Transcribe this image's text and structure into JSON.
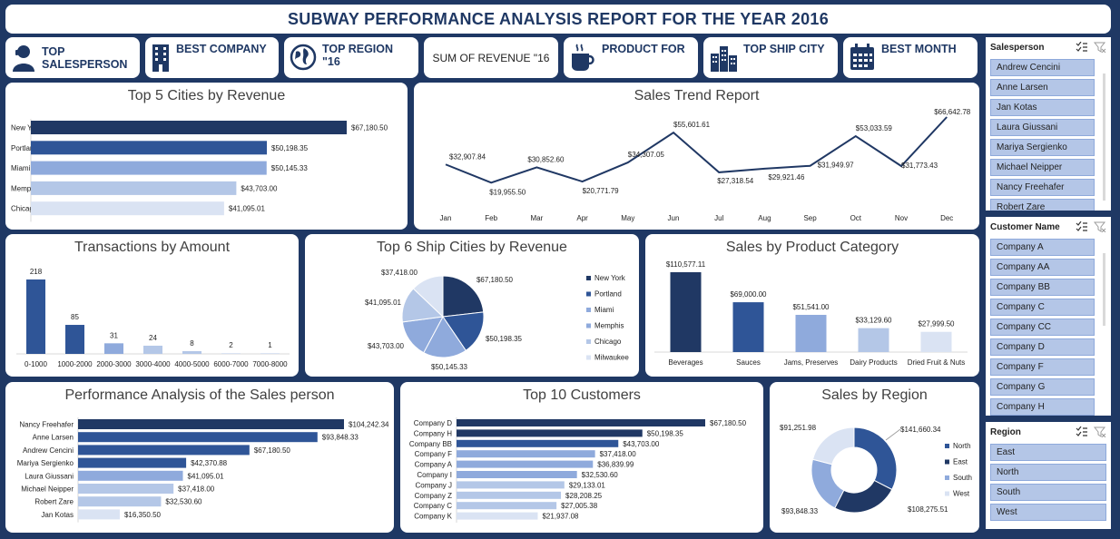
{
  "header": {
    "title": "SUBWAY PERFORMANCE ANALYSIS REPORT FOR THE YEAR 2016"
  },
  "kpis": [
    {
      "label": "TOP SALESPERSON",
      "icon": "person-icon"
    },
    {
      "label": "BEST COMPANY",
      "icon": "building-icon"
    },
    {
      "label": "TOP REGION \"16",
      "icon": "globe-icon"
    },
    {
      "label": "SUM OF REVENUE \"16",
      "icon": ""
    },
    {
      "label": "PRODUCT FOR",
      "icon": "coffee-cup-icon"
    },
    {
      "label": "TOP SHIP CITY",
      "icon": "city-icon"
    },
    {
      "label": "BEST MONTH",
      "icon": "calendar-icon"
    }
  ],
  "colors": {
    "dark": "#203864",
    "mid": "#2f5597",
    "light": "#8faadc",
    "lighter": "#b4c7e7",
    "lightest": "#dae3f3",
    "background": "#1f3864"
  },
  "charts": {
    "cities": {
      "title": "Top 5 Cities by Revenue",
      "chart_data": {
        "type": "bar",
        "orientation": "horizontal",
        "categories": [
          "New York",
          "Portland",
          "Miami",
          "Memphis",
          "Chicago"
        ],
        "values": [
          67180.5,
          50198.35,
          50145.33,
          43703.0,
          41095.01
        ],
        "labels": [
          "$67,180.50",
          "$50,198.35",
          "$50,145.33",
          "$43,703.00",
          "$41,095.01"
        ]
      }
    },
    "trend": {
      "title": "Sales Trend Report",
      "chart_data": {
        "type": "line",
        "x": [
          "Jan",
          "Feb",
          "Mar",
          "Apr",
          "May",
          "Jun",
          "Jul",
          "Aug",
          "Sep",
          "Oct",
          "Nov",
          "Dec"
        ],
        "values": [
          32907.84,
          19955.5,
          30852.6,
          20771.79,
          34307.05,
          55601.61,
          27318.54,
          29921.46,
          31949.97,
          53033.59,
          31773.43,
          66642.78
        ],
        "labels": [
          "$32,907.84",
          "$19,955.50",
          "$30,852.60",
          "$20,771.79",
          "$34,307.05",
          "$55,601.61",
          "$27,318.54",
          "$29,921.46",
          "$31,949.97",
          "$53,033.59",
          "$31,773.43",
          "$66,642.78"
        ]
      }
    },
    "transactions": {
      "title": "Transactions by Amount",
      "chart_data": {
        "type": "bar",
        "categories": [
          "0-1000",
          "1000-2000",
          "2000-3000",
          "3000-4000",
          "4000-5000",
          "6000-7000",
          "7000-8000"
        ],
        "values": [
          218,
          85,
          31,
          24,
          8,
          2,
          1
        ],
        "labels": [
          "218",
          "85",
          "31",
          "24",
          "8",
          "2",
          "1"
        ]
      }
    },
    "ship": {
      "title": "Top 6 Ship Cities by Revenue",
      "chart_data": {
        "type": "pie",
        "categories": [
          "New York",
          "Portland",
          "Miami",
          "Memphis",
          "Chicago",
          "Milwaukee"
        ],
        "values": [
          67180.5,
          50198.35,
          50145.33,
          43703.0,
          41095.01,
          37418.0
        ],
        "labels": [
          "$67,180.50",
          "$50,198.35",
          "$50,145.33",
          "$43,703.00",
          "$41,095.01",
          "$37,418.00"
        ]
      }
    },
    "category": {
      "title": "Sales by Product Category",
      "chart_data": {
        "type": "bar",
        "categories": [
          "Beverages",
          "Sauces",
          "Jams, Preserves",
          "Dairy Products",
          "Dried Fruit & Nuts"
        ],
        "values": [
          110577.11,
          69000.0,
          51541.0,
          33129.6,
          27999.5
        ],
        "labels": [
          "$110,577.11",
          "$69,000.00",
          "$51,541.00",
          "$33,129.60",
          "$27,999.50"
        ]
      }
    },
    "salesperson": {
      "title": "Performance Analysis of the Sales person",
      "chart_data": {
        "type": "bar",
        "orientation": "horizontal",
        "categories": [
          "Nancy Freehafer",
          "Anne Larsen",
          "Andrew Cencini",
          "Mariya Sergienko",
          "Laura Giussani",
          "Michael Neipper",
          "Robert Zare",
          "Jan Kotas"
        ],
        "values": [
          104242.34,
          93848.33,
          67180.5,
          42370.88,
          41095.01,
          37418.0,
          32530.6,
          16350.5
        ],
        "labels": [
          "$104,242.34",
          "$93,848.33",
          "$67,180.50",
          "$42,370.88",
          "$41,095.01",
          "$37,418.00",
          "$32,530.60",
          "$16,350.50"
        ]
      }
    },
    "customers": {
      "title": "Top 10 Customers",
      "chart_data": {
        "type": "bar",
        "orientation": "horizontal",
        "categories": [
          "Company D",
          "Company H",
          "Company BB",
          "Company F",
          "Company A",
          "Company I",
          "Company J",
          "Company Z",
          "Company C",
          "Company K"
        ],
        "values": [
          67180.5,
          50198.35,
          43703.0,
          37418.0,
          36839.99,
          32530.6,
          29133.01,
          28208.25,
          27005.38,
          21937.08
        ],
        "labels": [
          "$67,180.50",
          "$50,198.35",
          "$43,703.00",
          "$37,418.00",
          "$36,839.99",
          "$32,530.60",
          "$29,133.01",
          "$28,208.25",
          "$27,005.38",
          "$21,937.08"
        ]
      }
    },
    "region": {
      "title": "Sales by Region",
      "chart_data": {
        "type": "pie",
        "donut": true,
        "categories": [
          "North",
          "East",
          "South",
          "West"
        ],
        "values": [
          141660.34,
          108275.51,
          93848.33,
          91251.98
        ],
        "labels": [
          "$141,660.34",
          "$108,275.51",
          "$93,848.33",
          "$91,251.98"
        ]
      }
    }
  },
  "slicers": {
    "salesperson": {
      "header": "Salesperson",
      "items": [
        "Andrew Cencini",
        "Anne Larsen",
        "Jan Kotas",
        "Laura Giussani",
        "Mariya Sergienko",
        "Michael Neipper",
        "Nancy Freehafer",
        "Robert Zare"
      ]
    },
    "customer": {
      "header": "Customer Name",
      "items": [
        "Company A",
        "Company AA",
        "Company BB",
        "Company C",
        "Company CC",
        "Company D",
        "Company F",
        "Company G",
        "Company H"
      ]
    },
    "region": {
      "header": "Region",
      "items": [
        "East",
        "North",
        "South",
        "West"
      ]
    }
  }
}
